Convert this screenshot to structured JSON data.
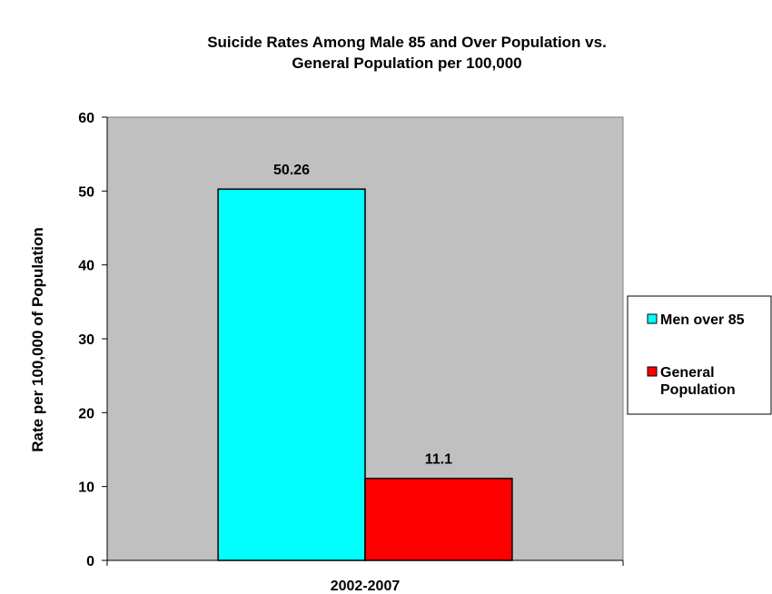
{
  "chart_data": {
    "type": "bar",
    "title_lines": [
      "Suicide Rates Among Male 85 and Over Population vs.",
      "General Population per 100,000"
    ],
    "xlabel": "",
    "ylabel": "Rate per 100,000 of Population",
    "categories": [
      "2002-2007"
    ],
    "series": [
      {
        "name": "Men over 85",
        "values": [
          50.26
        ],
        "color": "#00ffff",
        "value_label": "50.26"
      },
      {
        "name": "General Population",
        "legend_lines": [
          "General",
          "Population"
        ],
        "values": [
          11.1
        ],
        "color": "#ff0000",
        "value_label": "11.1"
      }
    ],
    "ylim": [
      0,
      60
    ],
    "yticks": [
      0,
      10,
      20,
      30,
      40,
      50,
      60
    ],
    "plot_background": "#c0c0c0",
    "grid": false,
    "legend_position": "right"
  }
}
